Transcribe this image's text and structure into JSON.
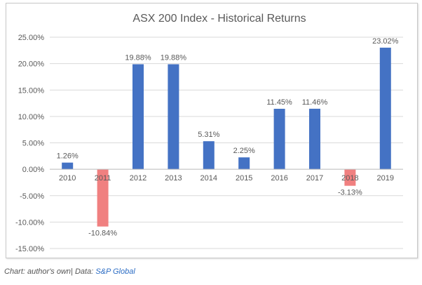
{
  "caption": {
    "prefix": "Chart: author's own| Data: ",
    "source": "S&P Global"
  },
  "colors": {
    "positive": "#4472c4",
    "negative": "#f08080",
    "grid": "#d9d9d9",
    "text": "#595959"
  },
  "chart_data": {
    "type": "bar",
    "title": "ASX 200 Index - Historical Returns",
    "categories": [
      "2010",
      "2011",
      "2012",
      "2013",
      "2014",
      "2015",
      "2016",
      "2017",
      "2018",
      "2019"
    ],
    "values": [
      1.26,
      -10.84,
      19.88,
      19.88,
      5.31,
      2.25,
      11.45,
      11.46,
      -3.13,
      23.02
    ],
    "value_labels": [
      "1.26%",
      "-10.84%",
      "19.88%",
      "19.88%",
      "5.31%",
      "2.25%",
      "11.45%",
      "11.46%",
      "-3.13%",
      "23.02%"
    ],
    "yticks": [
      25,
      20,
      15,
      10,
      5,
      0,
      -5,
      -10,
      -15
    ],
    "ytick_labels": [
      "25.00%",
      "20.00%",
      "15.00%",
      "10.00%",
      "5.00%",
      "0.00%",
      "-5.00%",
      "-10.00%",
      "-15.00%"
    ],
    "ylim": [
      -15,
      25
    ],
    "grid": true,
    "legend": false
  }
}
